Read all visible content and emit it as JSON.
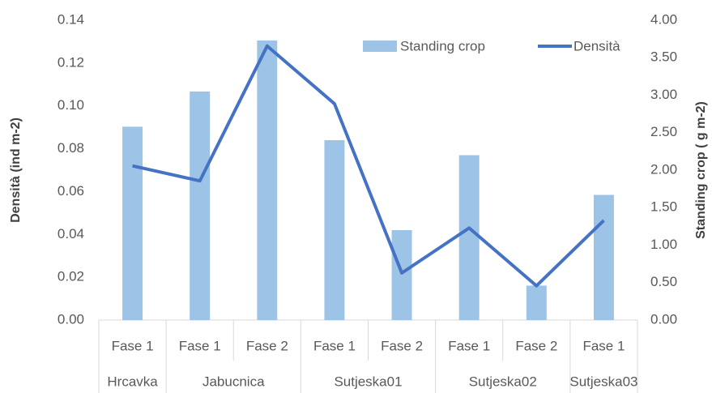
{
  "chart_data": {
    "type": "bar-line",
    "groups": [
      {
        "name": "Hrcavka",
        "categories": [
          "Fase 1"
        ]
      },
      {
        "name": "Jabucnica",
        "categories": [
          "Fase 1",
          "Fase 2"
        ]
      },
      {
        "name": "Sutjeska01",
        "categories": [
          "Fase 1",
          "Fase 2"
        ]
      },
      {
        "name": "Sutjeska02",
        "categories": [
          "Fase 1",
          "Fase 2"
        ]
      },
      {
        "name": "Sutjeska03",
        "categories": [
          "Fase 1"
        ]
      }
    ],
    "series": [
      {
        "name": "Standing crop",
        "type": "bar",
        "axis": "y2",
        "color": "#9dc3e6",
        "values": [
          2.58,
          3.05,
          3.73,
          2.4,
          1.2,
          2.2,
          0.46,
          1.67
        ]
      },
      {
        "name": "Densità",
        "type": "line",
        "axis": "y",
        "color": "#4472c4",
        "values": [
          0.072,
          0.065,
          0.128,
          0.101,
          0.022,
          0.043,
          0.016,
          0.0465
        ]
      }
    ],
    "ylabel": "Densità (ind m-2)",
    "y2label": "Standing crop ( g m-2)",
    "ylim": [
      0,
      0.14
    ],
    "yticks": [
      {
        "value": 0,
        "label": "0.00"
      },
      {
        "value": 0.02,
        "label": "0.02"
      },
      {
        "value": 0.04,
        "label": "0.04"
      },
      {
        "value": 0.06,
        "label": "0.06"
      },
      {
        "value": 0.08,
        "label": "0.08"
      },
      {
        "value": 0.1,
        "label": "0.10"
      },
      {
        "value": 0.12,
        "label": "0.12"
      },
      {
        "value": 0.14,
        "label": "0.14"
      }
    ],
    "y2lim": [
      0,
      4
    ],
    "y2ticks": [
      {
        "value": 0,
        "label": "0.00"
      },
      {
        "value": 0.5,
        "label": "0.50"
      },
      {
        "value": 1,
        "label": "1.00"
      },
      {
        "value": 1.5,
        "label": "1.50"
      },
      {
        "value": 2,
        "label": "2.00"
      },
      {
        "value": 2.5,
        "label": "2.50"
      },
      {
        "value": 3,
        "label": "3.00"
      },
      {
        "value": 3.5,
        "label": "3.50"
      },
      {
        "value": 4,
        "label": "4.00"
      }
    ],
    "legend": "top-right"
  }
}
